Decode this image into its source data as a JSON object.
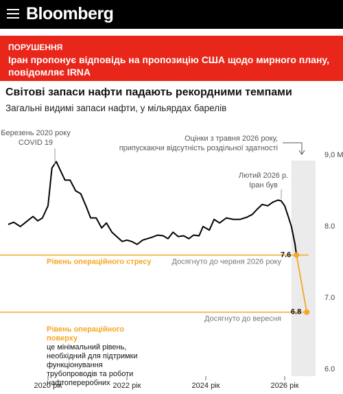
{
  "header": {
    "brand": "Bloomberg"
  },
  "banner": {
    "kicker": "ПОРУШЕННЯ",
    "headline": "Іран пропонує відповідь на пропозицію США щодо мирного плану, повідомляє IRNA"
  },
  "chart_data": {
    "type": "line",
    "title": "Світові запаси нафти падають рекордними темпами",
    "subtitle": "Загальні видимі запаси нафти, у мільярдах барелів",
    "xlim": [
      2018.8,
      2027.4
    ],
    "xticks": [
      {
        "value": 2020,
        "label": "2020 рік"
      },
      {
        "value": 2022,
        "label": "2022 рік"
      },
      {
        "value": 2024,
        "label": "2024 рік"
      },
      {
        "value": 2026,
        "label": "2026 рік"
      }
    ],
    "ylim": [
      6,
      9
    ],
    "yticks": [
      {
        "value": 9,
        "label": "9,0 M"
      },
      {
        "value": 8,
        "label": "8.0"
      },
      {
        "value": 7,
        "label": "7.0"
      },
      {
        "value": 6,
        "label": "6.0"
      }
    ],
    "grid": false,
    "shaded_range": [
      2026.17,
      2026.78
    ],
    "series": [
      {
        "color": "#000000",
        "x": [
          2018.99,
          2019.13,
          2019.3,
          2019.48,
          2019.62,
          2019.74,
          2019.86,
          2020.0,
          2020.1,
          2020.21,
          2020.31,
          2020.43,
          2020.56,
          2020.7,
          2020.83,
          2020.96,
          2021.08,
          2021.22,
          2021.36,
          2021.48,
          2021.62,
          2021.74,
          2021.88,
          2022.0,
          2022.12,
          2022.26,
          2022.4,
          2022.52,
          2022.64,
          2022.78,
          2022.92,
          2023.04,
          2023.17,
          2023.3,
          2023.44,
          2023.57,
          2023.69,
          2023.83,
          2023.93,
          2024.09,
          2024.21,
          2024.35,
          2024.52,
          2024.7,
          2024.87,
          2025.04,
          2025.18,
          2025.3,
          2025.43,
          2025.57,
          2025.7,
          2025.83,
          2025.91,
          2026.0,
          2026.09,
          2026.17,
          2026.26,
          2026.3
        ],
        "values": [
          8.03,
          8.06,
          8.0,
          8.08,
          8.14,
          8.08,
          8.12,
          8.29,
          8.82,
          8.91,
          8.79,
          8.65,
          8.65,
          8.5,
          8.46,
          8.29,
          8.12,
          8.12,
          7.98,
          8.05,
          7.92,
          7.86,
          7.79,
          7.81,
          7.79,
          7.75,
          7.81,
          7.83,
          7.85,
          7.88,
          7.87,
          7.83,
          7.92,
          7.86,
          7.87,
          7.83,
          7.88,
          7.87,
          8.0,
          7.95,
          8.1,
          8.05,
          8.12,
          8.1,
          8.1,
          8.13,
          8.17,
          8.24,
          8.31,
          8.29,
          8.34,
          8.37,
          8.36,
          8.29,
          8.14,
          8.0,
          7.76,
          7.6
        ]
      },
      {
        "color": "#f5a623",
        "x": [
          2026.3,
          2026.56
        ],
        "values": [
          7.6,
          6.8
        ]
      }
    ],
    "reference_lines": [
      {
        "value": 7.6,
        "color": "#f5a623",
        "label": "Рівень операційного стресу",
        "note": "Досягнуто до червня 2026 року"
      },
      {
        "value": 6.8,
        "color": "#f5a623",
        "label": "Рівень операційного поверху",
        "description": "це мінімальний рівень, необхідний для підтримки функціонування трубопроводів та роботи нафтопереробних",
        "note": "Досягнуто до вересня"
      }
    ],
    "annotations": [
      {
        "lines": [
          "Березень 2020 року",
          "COVID 19"
        ]
      },
      {
        "lines": [
          "Лютий 2026 р.",
          "Іран був"
        ]
      },
      {
        "lines": [
          "Оцінки з травня 2026 року,",
          "припускаючи відсутність роздільної здатності"
        ]
      }
    ]
  }
}
